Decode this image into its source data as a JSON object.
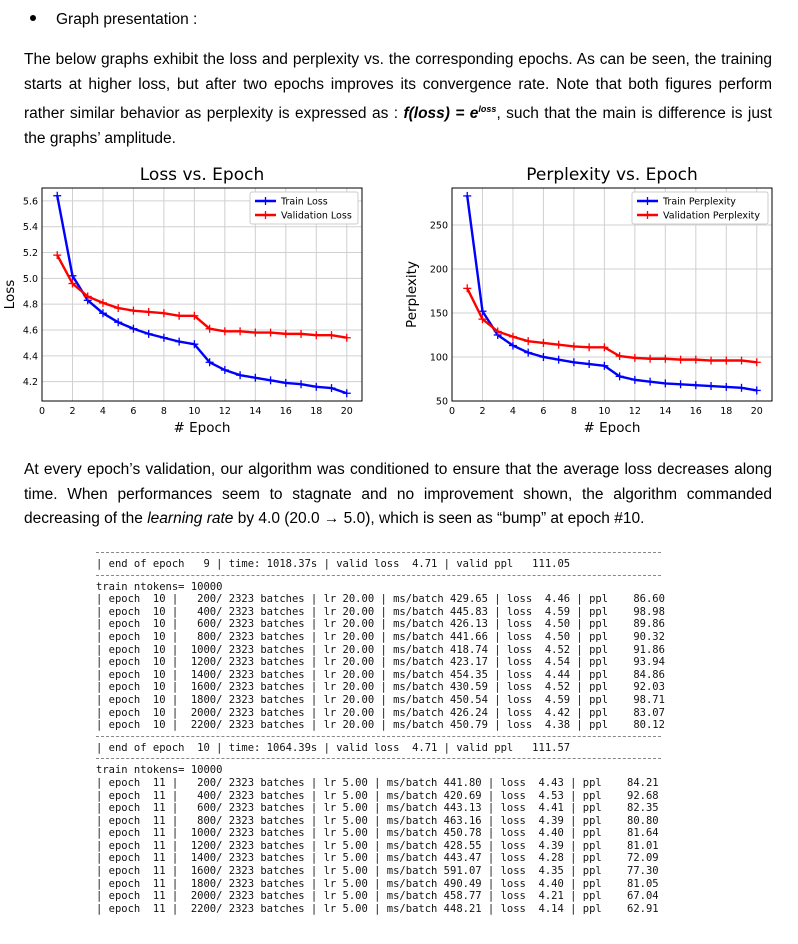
{
  "section": {
    "bullet_title": "Graph presentation :",
    "paragraph1_prefix": "The below graphs exhibit the loss and perplexity vs. the corresponding epochs. As can be seen, the training starts at higher loss, but after two epochs improves its convergence rate. Note that both figures perform rather similar behavior as perplexity is expressed as : ",
    "formula_main": "f(loss) = e",
    "formula_sup": "loss",
    "paragraph1_suffix": ", such that the main is difference is just the graphs’ amplitude.",
    "paragraph2_prefix": "At every epoch’s validation, our algorithm was conditioned to ensure that the average loss decreases along time. When performances seem to stagnate and no improvement shown, the algorithm commanded decreasing of the ",
    "paragraph2_em": "learning rate",
    "paragraph2_suffix": " by 4.0 (20.0 → 5.0), which is seen as “bump” at epoch #10."
  },
  "chart_data": [
    {
      "type": "line",
      "title": "Loss vs. Epoch",
      "xlabel": "# Epoch",
      "ylabel": "Loss",
      "xlim": [
        0,
        21
      ],
      "ylim": [
        4.05,
        5.7
      ],
      "xticks": [
        0,
        2,
        4,
        6,
        8,
        10,
        12,
        14,
        16,
        18,
        20
      ],
      "yticks": [
        4.2,
        4.4,
        4.6,
        4.8,
        5.0,
        5.2,
        5.4,
        5.6
      ],
      "ytick_labels": [
        "4.2",
        "4.4",
        "4.6",
        "4.8",
        "5.0",
        "5.2",
        "5.4",
        "5.6"
      ],
      "grid": true,
      "legend": "top-right",
      "x": [
        1,
        2,
        3,
        4,
        5,
        6,
        7,
        8,
        9,
        10,
        11,
        12,
        13,
        14,
        15,
        16,
        17,
        18,
        19,
        20
      ],
      "series": [
        {
          "name": "Train Loss",
          "color": "#0000ff",
          "values": [
            5.64,
            5.02,
            4.83,
            4.73,
            4.66,
            4.61,
            4.57,
            4.54,
            4.51,
            4.49,
            4.35,
            4.29,
            4.25,
            4.23,
            4.21,
            4.19,
            4.18,
            4.16,
            4.15,
            4.11
          ]
        },
        {
          "name": "Validation Loss",
          "color": "#ff0000",
          "values": [
            5.18,
            4.96,
            4.86,
            4.81,
            4.77,
            4.75,
            4.74,
            4.73,
            4.71,
            4.71,
            4.61,
            4.59,
            4.59,
            4.58,
            4.58,
            4.57,
            4.57,
            4.56,
            4.56,
            4.54
          ]
        }
      ]
    },
    {
      "type": "line",
      "title": "Perplexity vs. Epoch",
      "xlabel": "# Epoch",
      "ylabel": "Perplexity",
      "xlim": [
        0,
        21
      ],
      "ylim": [
        50,
        292
      ],
      "xticks": [
        0,
        2,
        4,
        6,
        8,
        10,
        12,
        14,
        16,
        18,
        20
      ],
      "yticks": [
        50,
        100,
        150,
        200,
        250
      ],
      "ytick_labels": [
        "50",
        "100",
        "150",
        "200",
        "250"
      ],
      "grid": true,
      "legend": "top-right",
      "x": [
        1,
        2,
        3,
        4,
        5,
        6,
        7,
        8,
        9,
        10,
        11,
        12,
        13,
        14,
        15,
        16,
        17,
        18,
        19,
        20
      ],
      "series": [
        {
          "name": "Train Perplexity",
          "color": "#0000ff",
          "values": [
            283,
            152,
            125,
            113,
            105,
            100,
            97,
            94,
            92,
            90,
            78,
            74,
            72,
            70,
            69,
            68,
            67,
            66,
            65,
            62
          ]
        },
        {
          "name": "Validation Perplexity",
          "color": "#ff0000",
          "values": [
            178,
            143,
            129,
            123,
            118,
            116,
            114,
            112,
            111,
            111,
            101,
            99,
            98,
            98,
            97,
            97,
            96,
            96,
            96,
            94
          ]
        }
      ]
    }
  ],
  "log": {
    "epoch9_end": "| end of epoch   9 | time: 1018.37s | valid loss  4.71 | valid ppl   111.05",
    "ntokens1": "train ntokens= 10000",
    "epoch10_rows": [
      "| epoch  10 |   200/ 2323 batches | lr 20.00 | ms/batch 429.65 | loss  4.46 | ppl    86.60",
      "| epoch  10 |   400/ 2323 batches | lr 20.00 | ms/batch 445.83 | loss  4.59 | ppl    98.98",
      "| epoch  10 |   600/ 2323 batches | lr 20.00 | ms/batch 426.13 | loss  4.50 | ppl    89.86",
      "| epoch  10 |   800/ 2323 batches | lr 20.00 | ms/batch 441.66 | loss  4.50 | ppl    90.32",
      "| epoch  10 |  1000/ 2323 batches | lr 20.00 | ms/batch 418.74 | loss  4.52 | ppl    91.86",
      "| epoch  10 |  1200/ 2323 batches | lr 20.00 | ms/batch 423.17 | loss  4.54 | ppl    93.94",
      "| epoch  10 |  1400/ 2323 batches | lr 20.00 | ms/batch 454.35 | loss  4.44 | ppl    84.86",
      "| epoch  10 |  1600/ 2323 batches | lr 20.00 | ms/batch 430.59 | loss  4.52 | ppl    92.03",
      "| epoch  10 |  1800/ 2323 batches | lr 20.00 | ms/batch 450.54 | loss  4.59 | ppl    98.71",
      "| epoch  10 |  2000/ 2323 batches | lr 20.00 | ms/batch 426.24 | loss  4.42 | ppl    83.07",
      "| epoch  10 |  2200/ 2323 batches | lr 20.00 | ms/batch 450.79 | loss  4.38 | ppl    80.12"
    ],
    "epoch10_end": "| end of epoch  10 | time: 1064.39s | valid loss  4.71 | valid ppl   111.57",
    "ntokens2": "train ntokens= 10000",
    "epoch11_rows": [
      "| epoch  11 |   200/ 2323 batches | lr 5.00 | ms/batch 441.80 | loss  4.43 | ppl    84.21",
      "| epoch  11 |   400/ 2323 batches | lr 5.00 | ms/batch 420.69 | loss  4.53 | ppl    92.68",
      "| epoch  11 |   600/ 2323 batches | lr 5.00 | ms/batch 443.13 | loss  4.41 | ppl    82.35",
      "| epoch  11 |   800/ 2323 batches | lr 5.00 | ms/batch 463.16 | loss  4.39 | ppl    80.80",
      "| epoch  11 |  1000/ 2323 batches | lr 5.00 | ms/batch 450.78 | loss  4.40 | ppl    81.64",
      "| epoch  11 |  1200/ 2323 batches | lr 5.00 | ms/batch 428.55 | loss  4.39 | ppl    81.01",
      "| epoch  11 |  1400/ 2323 batches | lr 5.00 | ms/batch 443.47 | loss  4.28 | ppl    72.09",
      "| epoch  11 |  1600/ 2323 batches | lr 5.00 | ms/batch 591.07 | loss  4.35 | ppl    77.30",
      "| epoch  11 |  1800/ 2323 batches | lr 5.00 | ms/batch 490.49 | loss  4.40 | ppl    81.05",
      "| epoch  11 |  2000/ 2323 batches | lr 5.00 | ms/batch 458.77 | loss  4.21 | ppl    67.04",
      "| epoch  11 |  2200/ 2323 batches | lr 5.00 | ms/batch 448.21 | loss  4.14 | ppl    62.91"
    ]
  }
}
